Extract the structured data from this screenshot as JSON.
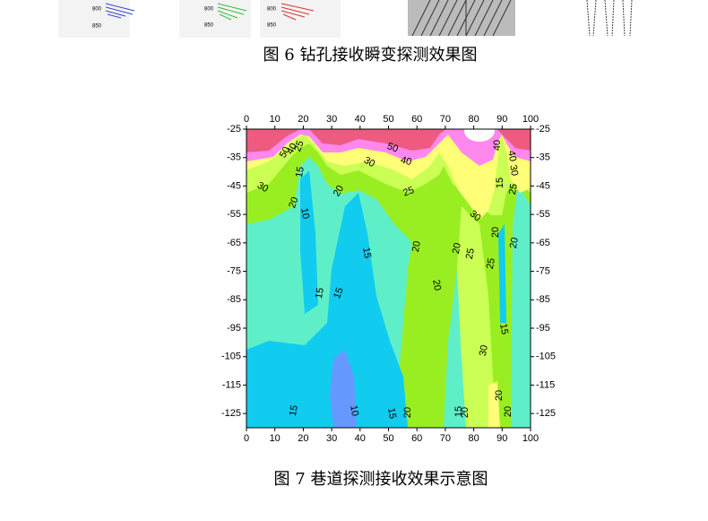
{
  "figure6": {
    "axis_labels": [
      "800",
      "850",
      "800",
      "850",
      "800",
      "850"
    ],
    "caption": "图 6 钻孔接收瞬变探测效果图"
  },
  "chart_data": {
    "type": "contour",
    "xlim": [
      0,
      100
    ],
    "ylim": [
      -25,
      -130
    ],
    "xticks": [
      0,
      10,
      20,
      30,
      40,
      50,
      60,
      70,
      80,
      90,
      100
    ],
    "yticks": [
      -25,
      -35,
      -45,
      -55,
      -65,
      -75,
      -85,
      -95,
      -105,
      -115,
      -125
    ],
    "contour_labels": [
      50,
      40,
      25,
      50,
      40,
      30,
      15,
      30,
      20,
      25,
      20,
      10,
      30,
      40,
      15,
      40,
      30,
      25,
      20,
      20,
      15,
      20,
      20,
      25,
      25,
      20,
      15,
      15,
      15,
      30,
      20,
      15,
      10,
      15,
      20,
      15,
      20,
      20
    ]
  },
  "figure7": {
    "caption": "图 7 巷道探测接收效果示意图"
  }
}
